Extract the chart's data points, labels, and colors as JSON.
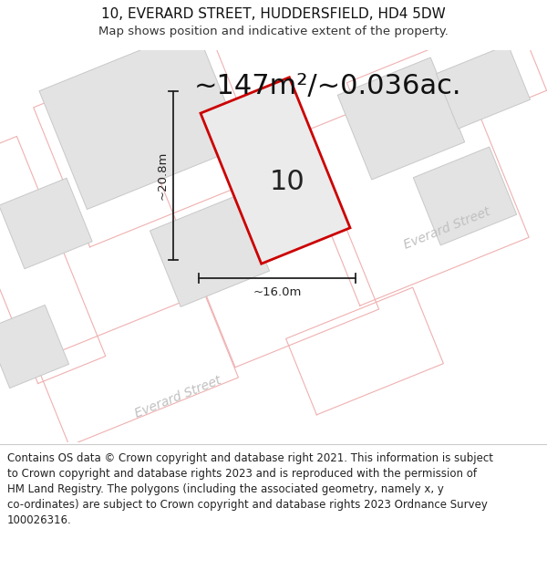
{
  "title_line1": "10, EVERARD STREET, HUDDERSFIELD, HD4 5DW",
  "title_line2": "Map shows position and indicative extent of the property.",
  "area_text": "~147m²/~0.036ac.",
  "dim_width": "~16.0m",
  "dim_height": "~20.8m",
  "property_number": "10",
  "footer_text": "Contains OS data © Crown copyright and database right 2021. This information is subject to Crown copyright and database rights 2023 and is reproduced with the permission of HM Land Registry. The polygons (including the associated geometry, namely x, y co-ordinates) are subject to Crown copyright and database rights 2023 Ordnance Survey 100026316.",
  "bg_color": "#f2f2f2",
  "building_fill": "#e3e3e3",
  "building_edge": "#c8c8c8",
  "lot_line_color": "#f0b0b0",
  "property_edge": "#cc0000",
  "property_fill": "#ebebeb",
  "dim_color": "#222222",
  "street_label_color": "#c0c0c0",
  "title_fontsize": 11,
  "subtitle_fontsize": 9.5,
  "area_fontsize": 22,
  "number_fontsize": 22,
  "footer_fontsize": 8.5,
  "street_fontsize": 10
}
